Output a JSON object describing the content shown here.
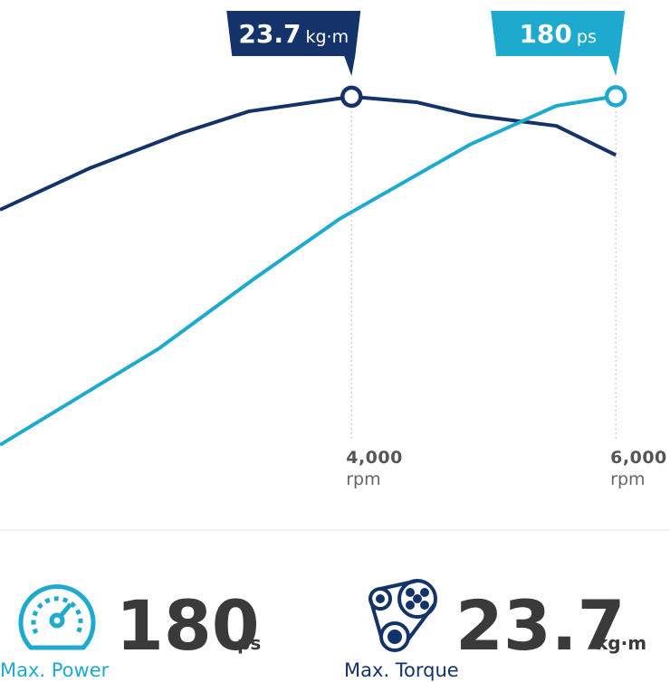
{
  "chart_data": {
    "type": "line",
    "xlim": [
      1340,
      6410
    ],
    "xticks": [
      {
        "value": 4000,
        "label": "4,000"
      },
      {
        "value": 6000,
        "label": "6,000"
      }
    ],
    "x_unit": "rpm",
    "ylim": [
      0,
      29
    ],
    "y2lim": [
      0,
      220
    ],
    "series": [
      {
        "name": "Max. Torque",
        "color": "#14336a",
        "unit": "kg·m",
        "peak": 23.7,
        "x": [
          1340,
          2025,
          2710,
          3225,
          4000,
          4490,
          4900,
          5550,
          6000
        ],
        "values": [
          17.5,
          19.8,
          21.7,
          22.9,
          23.7,
          23.4,
          22.7,
          22.1,
          20.5
        ]
      },
      {
        "name": "Max. Power",
        "color": "#1eaacf",
        "unit": "ps",
        "peak": 180,
        "axis": "y2",
        "x": [
          1340,
          2540,
          3260,
          3910,
          4900,
          5550,
          6000
        ],
        "values": [
          35,
          75,
          104,
          129,
          160,
          176,
          180
        ]
      }
    ]
  }
}
